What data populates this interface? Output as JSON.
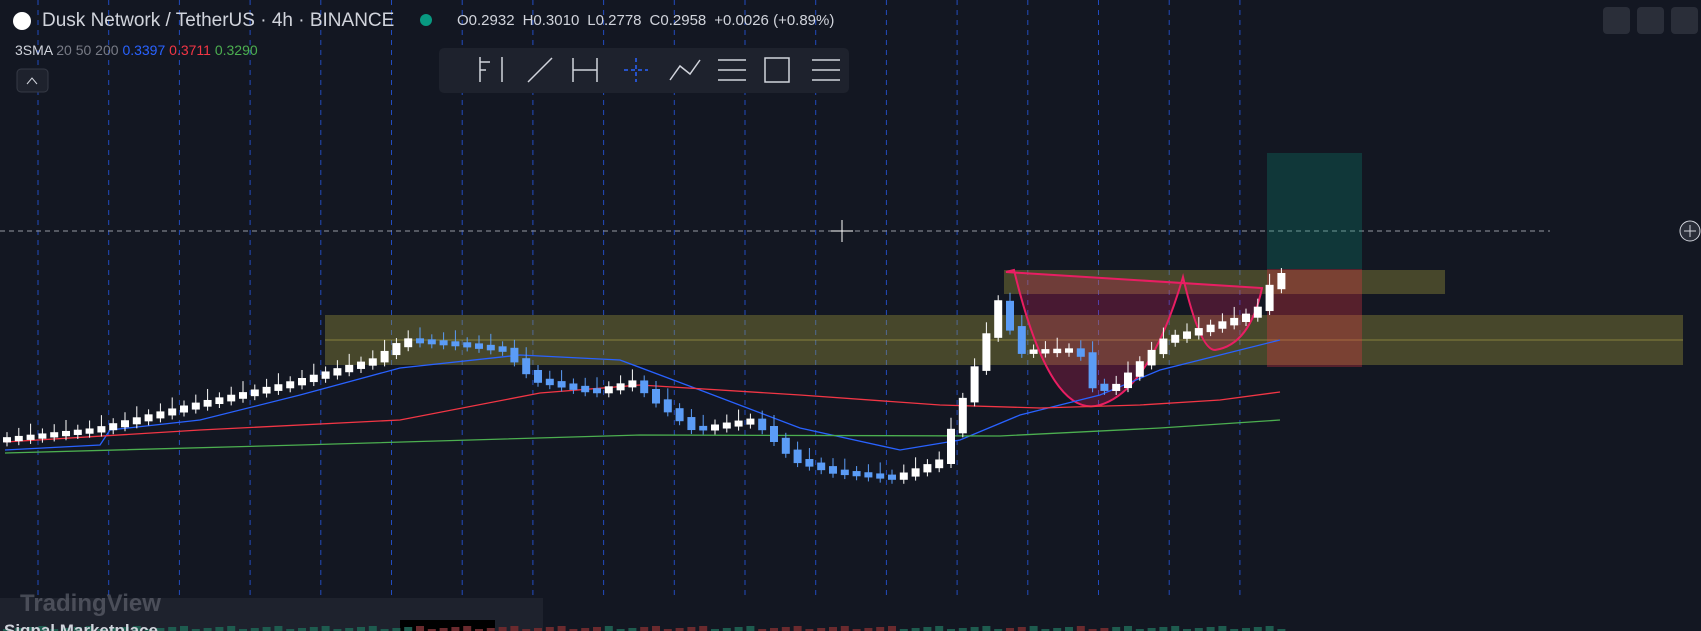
{
  "header": {
    "title": "Dusk Network / TetherUS · 4h · BINANCE",
    "ohlc": [
      {
        "label": "O",
        "value": "0.2932"
      },
      {
        "label": "H",
        "value": "0.3010"
      },
      {
        "label": "L",
        "value": "0.2778"
      },
      {
        "label": "C",
        "value": "0.2958"
      }
    ],
    "change": "+0.0026 (+0.89%)"
  },
  "indicator": {
    "name": "3SMA",
    "params": "20 50 200",
    "values": [
      "0.3397",
      "0.3711",
      "0.3290"
    ]
  },
  "footer": {
    "logo": "TradingView",
    "panel": "Signal Marketplace"
  }
}
